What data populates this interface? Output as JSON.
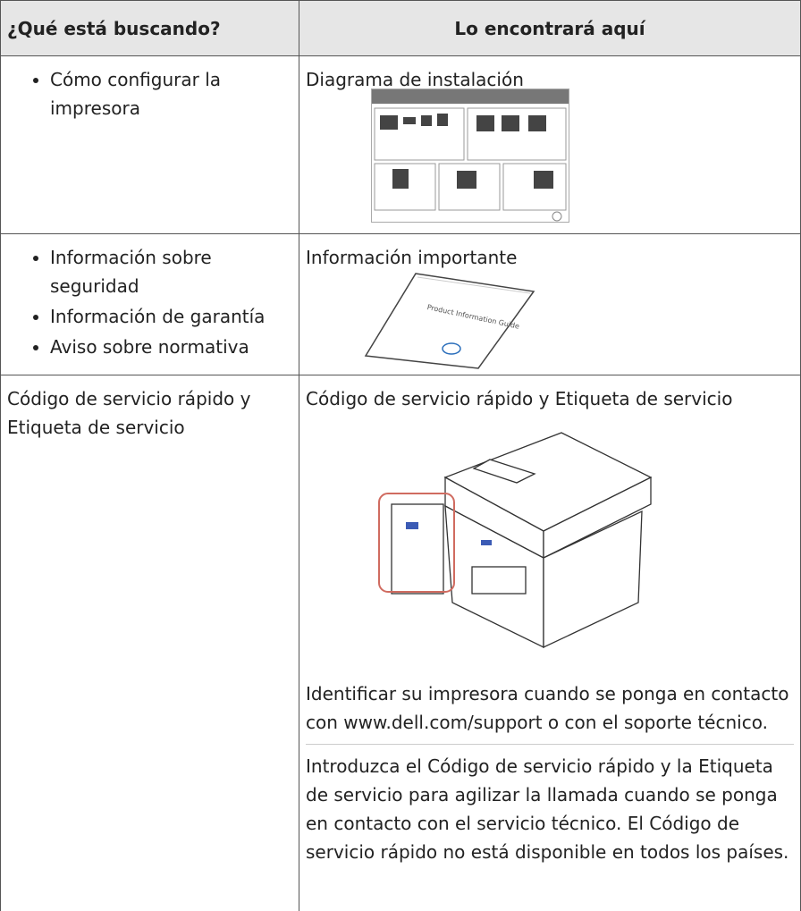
{
  "table": {
    "headers": [
      "¿Qué está buscando?",
      "Lo encontrará aquí"
    ],
    "rows": [
      {
        "left": {
          "bullets": [
            "Cómo configurar la impresora"
          ]
        },
        "right": {
          "title": "Diagrama de instalación"
        }
      },
      {
        "left": {
          "bullets": [
            "Información sobre seguridad",
            "Información de garantía",
            "Aviso sobre normativa"
          ]
        },
        "right": {
          "title": "Información importante"
        }
      },
      {
        "left": {
          "text": "Código de servicio rápido y Etiqueta de servicio"
        },
        "right": {
          "title": "Código de servicio rápido y Etiqueta de servicio",
          "paragraphs": [
            "Identificar su impresora cuando se ponga en contacto con www.dell.com/support o con el soporte técnico.",
            "Introduzca el Código de servicio rápido y la Etiqueta de servicio para agilizar la llamada cuando se ponga en contacto con el servicio técnico. El Código de servicio rápido no está disponible en todos los países."
          ]
        }
      }
    ]
  }
}
